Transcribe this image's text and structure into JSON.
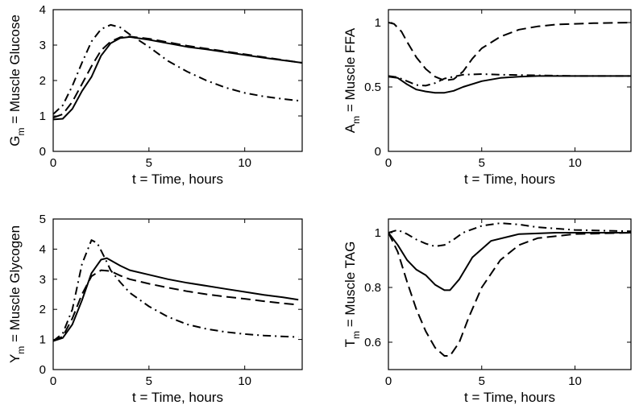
{
  "chart_data": [
    {
      "id": "glucose",
      "type": "line",
      "ylabel_main": "G",
      "ylabel_sub": "m",
      "ylabel_rest": " = Muscle Glucose",
      "xlabel": "t = Time, hours",
      "xlim": [
        0,
        13
      ],
      "ylim": [
        0,
        4
      ],
      "xticks": [
        0,
        5,
        10
      ],
      "yticks": [
        0,
        1,
        2,
        3,
        4
      ],
      "ytick_labels": [
        "0",
        "1",
        "2",
        "3",
        "4"
      ],
      "series": [
        {
          "name": "solid",
          "style": "solid",
          "points": [
            [
              0,
              0.9
            ],
            [
              0.5,
              0.92
            ],
            [
              1,
              1.2
            ],
            [
              1.5,
              1.7
            ],
            [
              2,
              2.1
            ],
            [
              2.5,
              2.7
            ],
            [
              3,
              3.05
            ],
            [
              3.5,
              3.2
            ],
            [
              4,
              3.23
            ],
            [
              5,
              3.15
            ],
            [
              6,
              3.05
            ],
            [
              7,
              2.95
            ],
            [
              8,
              2.88
            ],
            [
              9,
              2.8
            ],
            [
              10,
              2.72
            ],
            [
              11,
              2.64
            ],
            [
              12,
              2.57
            ],
            [
              13,
              2.5
            ]
          ]
        },
        {
          "name": "dashed",
          "style": "dashed",
          "points": [
            [
              0,
              0.95
            ],
            [
              0.5,
              1.05
            ],
            [
              1,
              1.4
            ],
            [
              1.5,
              1.9
            ],
            [
              2,
              2.4
            ],
            [
              2.5,
              2.85
            ],
            [
              3,
              3.1
            ],
            [
              3.5,
              3.22
            ],
            [
              4,
              3.24
            ],
            [
              5,
              3.18
            ],
            [
              6,
              3.08
            ],
            [
              7,
              2.98
            ],
            [
              8,
              2.9
            ],
            [
              9,
              2.82
            ],
            [
              10,
              2.74
            ],
            [
              11,
              2.66
            ],
            [
              12,
              2.58
            ],
            [
              13,
              2.5
            ]
          ]
        },
        {
          "name": "dashdot",
          "style": "dashdot",
          "points": [
            [
              0,
              1.05
            ],
            [
              0.5,
              1.3
            ],
            [
              1,
              1.85
            ],
            [
              1.5,
              2.5
            ],
            [
              2,
              3.1
            ],
            [
              2.5,
              3.45
            ],
            [
              3,
              3.57
            ],
            [
              3.5,
              3.5
            ],
            [
              4,
              3.3
            ],
            [
              5,
              2.95
            ],
            [
              6,
              2.55
            ],
            [
              7,
              2.25
            ],
            [
              8,
              2.0
            ],
            [
              9,
              1.8
            ],
            [
              10,
              1.65
            ],
            [
              11,
              1.55
            ],
            [
              12,
              1.48
            ],
            [
              13,
              1.42
            ]
          ]
        }
      ]
    },
    {
      "id": "ffa",
      "type": "line",
      "ylabel_main": "A",
      "ylabel_sub": "m",
      "ylabel_rest": " = Muscle FFA",
      "xlabel": "t = Time, hours",
      "xlim": [
        0,
        13
      ],
      "ylim": [
        0,
        1.1
      ],
      "xticks": [
        0,
        5,
        10
      ],
      "yticks": [
        0,
        0.5,
        1
      ],
      "ytick_labels": [
        "0",
        "0.5",
        "1"
      ],
      "series": [
        {
          "name": "solid",
          "style": "solid",
          "points": [
            [
              0,
              0.58
            ],
            [
              0.5,
              0.57
            ],
            [
              1,
              0.52
            ],
            [
              1.5,
              0.48
            ],
            [
              2,
              0.465
            ],
            [
              2.5,
              0.455
            ],
            [
              3,
              0.455
            ],
            [
              3.5,
              0.47
            ],
            [
              4,
              0.5
            ],
            [
              5,
              0.545
            ],
            [
              6,
              0.57
            ],
            [
              7,
              0.58
            ],
            [
              8,
              0.585
            ],
            [
              10,
              0.585
            ],
            [
              13,
              0.585
            ]
          ]
        },
        {
          "name": "dashed",
          "style": "dashed",
          "points": [
            [
              0,
              1.0
            ],
            [
              0.3,
              0.99
            ],
            [
              0.7,
              0.93
            ],
            [
              1,
              0.85
            ],
            [
              1.5,
              0.73
            ],
            [
              2,
              0.64
            ],
            [
              2.5,
              0.58
            ],
            [
              3,
              0.55
            ],
            [
              3.5,
              0.56
            ],
            [
              4,
              0.62
            ],
            [
              4.5,
              0.72
            ],
            [
              5,
              0.8
            ],
            [
              6,
              0.89
            ],
            [
              7,
              0.945
            ],
            [
              8,
              0.97
            ],
            [
              9,
              0.985
            ],
            [
              10,
              0.99
            ],
            [
              11,
              0.995
            ],
            [
              13,
              1.0
            ]
          ]
        },
        {
          "name": "dashdot",
          "style": "dashdot",
          "points": [
            [
              0,
              0.585
            ],
            [
              0.5,
              0.575
            ],
            [
              1,
              0.545
            ],
            [
              1.5,
              0.515
            ],
            [
              2,
              0.51
            ],
            [
              2.5,
              0.53
            ],
            [
              3,
              0.565
            ],
            [
              4,
              0.595
            ],
            [
              5,
              0.6
            ],
            [
              6,
              0.595
            ],
            [
              8,
              0.59
            ],
            [
              10,
              0.585
            ],
            [
              13,
              0.585
            ]
          ]
        }
      ]
    },
    {
      "id": "glycogen",
      "type": "line",
      "ylabel_main": "Y",
      "ylabel_sub": "m",
      "ylabel_rest": " = Muscle Glycogen",
      "xlabel": "t = Time, hours",
      "xlim": [
        0,
        13
      ],
      "ylim": [
        0,
        5
      ],
      "xticks": [
        0,
        5,
        10
      ],
      "yticks": [
        0,
        1,
        2,
        3,
        4,
        5
      ],
      "ytick_labels": [
        "0",
        "1",
        "2",
        "3",
        "4",
        "5"
      ],
      "series": [
        {
          "name": "solid",
          "style": "solid",
          "points": [
            [
              0,
              0.95
            ],
            [
              0.5,
              1.05
            ],
            [
              1,
              1.5
            ],
            [
              1.5,
              2.3
            ],
            [
              2,
              3.2
            ],
            [
              2.5,
              3.65
            ],
            [
              2.8,
              3.7
            ],
            [
              3.5,
              3.45
            ],
            [
              4,
              3.3
            ],
            [
              5,
              3.15
            ],
            [
              6,
              3.0
            ],
            [
              7,
              2.88
            ],
            [
              8,
              2.78
            ],
            [
              9,
              2.68
            ],
            [
              10,
              2.58
            ],
            [
              11,
              2.48
            ],
            [
              12,
              2.4
            ],
            [
              12.8,
              2.32
            ]
          ]
        },
        {
          "name": "dashed",
          "style": "dashed",
          "points": [
            [
              0,
              0.95
            ],
            [
              0.5,
              1.1
            ],
            [
              1,
              1.7
            ],
            [
              1.5,
              2.5
            ],
            [
              2,
              3.1
            ],
            [
              2.5,
              3.3
            ],
            [
              3,
              3.27
            ],
            [
              3.5,
              3.12
            ],
            [
              4,
              3.0
            ],
            [
              5,
              2.85
            ],
            [
              6,
              2.72
            ],
            [
              7,
              2.6
            ],
            [
              8,
              2.5
            ],
            [
              9,
              2.42
            ],
            [
              10,
              2.35
            ],
            [
              11,
              2.27
            ],
            [
              12,
              2.2
            ],
            [
              12.8,
              2.15
            ]
          ]
        },
        {
          "name": "dashdot",
          "style": "dashdot",
          "points": [
            [
              0,
              0.95
            ],
            [
              0.5,
              1.2
            ],
            [
              1,
              2.0
            ],
            [
              1.5,
              3.5
            ],
            [
              2,
              4.3
            ],
            [
              2.3,
              4.2
            ],
            [
              2.7,
              3.7
            ],
            [
              3,
              3.3
            ],
            [
              3.5,
              2.9
            ],
            [
              4,
              2.55
            ],
            [
              5,
              2.1
            ],
            [
              6,
              1.75
            ],
            [
              7,
              1.5
            ],
            [
              8,
              1.35
            ],
            [
              9,
              1.25
            ],
            [
              10,
              1.18
            ],
            [
              11,
              1.13
            ],
            [
              12,
              1.1
            ],
            [
              12.8,
              1.08
            ]
          ]
        }
      ]
    },
    {
      "id": "tag",
      "type": "line",
      "ylabel_main": "T",
      "ylabel_sub": "m",
      "ylabel_rest": " = Muscle TAG",
      "xlabel": "t = Time, hours",
      "xlim": [
        0,
        13
      ],
      "ylim": [
        0.5,
        1.05
      ],
      "xticks": [
        0,
        5,
        10
      ],
      "yticks": [
        0.6,
        0.8,
        1
      ],
      "ytick_labels": [
        "0.6",
        "0.8",
        "1"
      ],
      "series": [
        {
          "name": "solid",
          "style": "solid",
          "points": [
            [
              0,
              1.0
            ],
            [
              0.5,
              0.955
            ],
            [
              1,
              0.9
            ],
            [
              1.5,
              0.865
            ],
            [
              2,
              0.845
            ],
            [
              2.5,
              0.81
            ],
            [
              3,
              0.79
            ],
            [
              3.3,
              0.79
            ],
            [
              3.8,
              0.83
            ],
            [
              4.5,
              0.91
            ],
            [
              5.5,
              0.97
            ],
            [
              7,
              0.995
            ],
            [
              9,
              1.0
            ],
            [
              13,
              1.0
            ]
          ]
        },
        {
          "name": "dashed",
          "style": "dashed",
          "points": [
            [
              0,
              1.0
            ],
            [
              0.5,
              0.93
            ],
            [
              1,
              0.82
            ],
            [
              1.5,
              0.72
            ],
            [
              2,
              0.64
            ],
            [
              2.5,
              0.58
            ],
            [
              3,
              0.55
            ],
            [
              3.3,
              0.55
            ],
            [
              3.8,
              0.6
            ],
            [
              4.3,
              0.69
            ],
            [
              5,
              0.8
            ],
            [
              6,
              0.9
            ],
            [
              7,
              0.955
            ],
            [
              8,
              0.98
            ],
            [
              10,
              0.995
            ],
            [
              13,
              1.0
            ]
          ]
        },
        {
          "name": "dashdot",
          "style": "dashdot",
          "points": [
            [
              0,
              1.0
            ],
            [
              0.5,
              1.01
            ],
            [
              1,
              0.995
            ],
            [
              1.5,
              0.975
            ],
            [
              2,
              0.96
            ],
            [
              2.5,
              0.95
            ],
            [
              3,
              0.955
            ],
            [
              3.5,
              0.975
            ],
            [
              4,
              1.0
            ],
            [
              5,
              1.025
            ],
            [
              6,
              1.035
            ],
            [
              7,
              1.03
            ],
            [
              8,
              1.02
            ],
            [
              10,
              1.01
            ],
            [
              13,
              1.005
            ]
          ]
        }
      ]
    }
  ]
}
